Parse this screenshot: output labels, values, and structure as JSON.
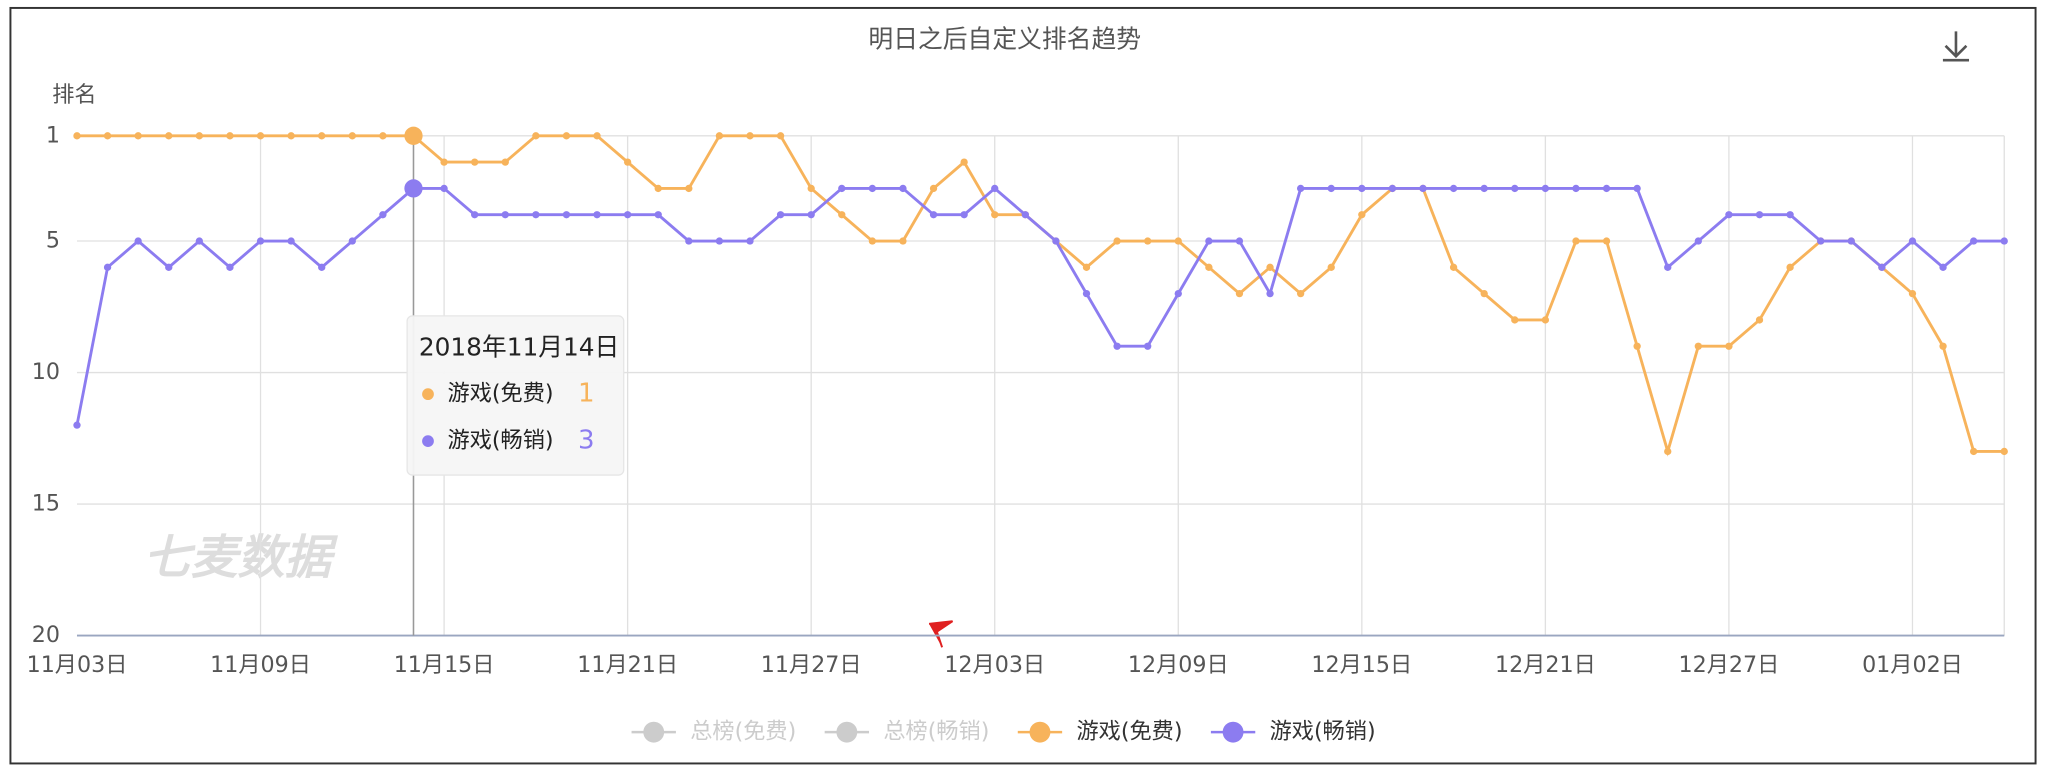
{
  "chart_data": {
    "type": "line",
    "title": "明日之后自定义排名趋势",
    "y_label": "排名",
    "watermark": "七麦数据",
    "categories": [
      "11月03日",
      null,
      null,
      null,
      null,
      null,
      "11月09日",
      null,
      null,
      null,
      null,
      null,
      "11月15日",
      null,
      null,
      null,
      null,
      null,
      "11月21日",
      null,
      null,
      null,
      null,
      null,
      "11月27日",
      null,
      null,
      null,
      null,
      null,
      "12月03日",
      null,
      null,
      null,
      null,
      null,
      "12月09日",
      null,
      null,
      null,
      null,
      null,
      "12月15日",
      null,
      null,
      null,
      null,
      null,
      "12月21日",
      null,
      null,
      null,
      null,
      null,
      "12月27日",
      null,
      null,
      null,
      null,
      null,
      "01月02日",
      null,
      null,
      null
    ],
    "ylim": [
      1,
      20
    ],
    "yticks": [
      1,
      5,
      10,
      15,
      20
    ],
    "y_inverted": true,
    "grid": true,
    "series": [
      {
        "name": "总榜(免费)",
        "color": "#cccccc",
        "hidden": true
      },
      {
        "name": "总榜(畅销)",
        "color": "#cccccc",
        "hidden": true
      },
      {
        "name": "游戏(免费)",
        "color": "#f7b35b",
        "values": [
          1,
          1,
          1,
          1,
          1,
          1,
          1,
          1,
          1,
          1,
          1,
          1,
          2,
          2,
          2,
          1,
          1,
          1,
          2,
          3,
          3,
          1,
          1,
          1,
          3,
          4,
          5,
          5,
          3,
          2,
          4,
          4,
          5,
          6,
          5,
          5,
          5,
          6,
          7,
          6,
          7,
          6,
          4,
          3,
          3,
          6,
          7,
          8,
          8,
          5,
          5,
          9,
          13,
          9,
          9,
          8,
          6,
          5,
          5,
          6,
          7,
          9,
          13,
          13
        ]
      },
      {
        "name": "游戏(畅销)",
        "color": "#8c7cf0",
        "values": [
          12,
          6,
          5,
          6,
          5,
          6,
          5,
          5,
          6,
          5,
          4,
          3,
          3,
          4,
          4,
          4,
          4,
          4,
          4,
          4,
          5,
          5,
          5,
          4,
          4,
          3,
          3,
          3,
          4,
          4,
          3,
          4,
          5,
          7,
          9,
          9,
          7,
          5,
          5,
          7,
          3,
          3,
          3,
          3,
          3,
          3,
          3,
          3,
          3,
          3,
          3,
          3,
          6,
          5,
          4,
          4,
          4,
          5,
          5,
          6,
          5,
          6,
          5,
          5
        ]
      }
    ],
    "tooltip_title": "2018年11月14日"
  }
}
